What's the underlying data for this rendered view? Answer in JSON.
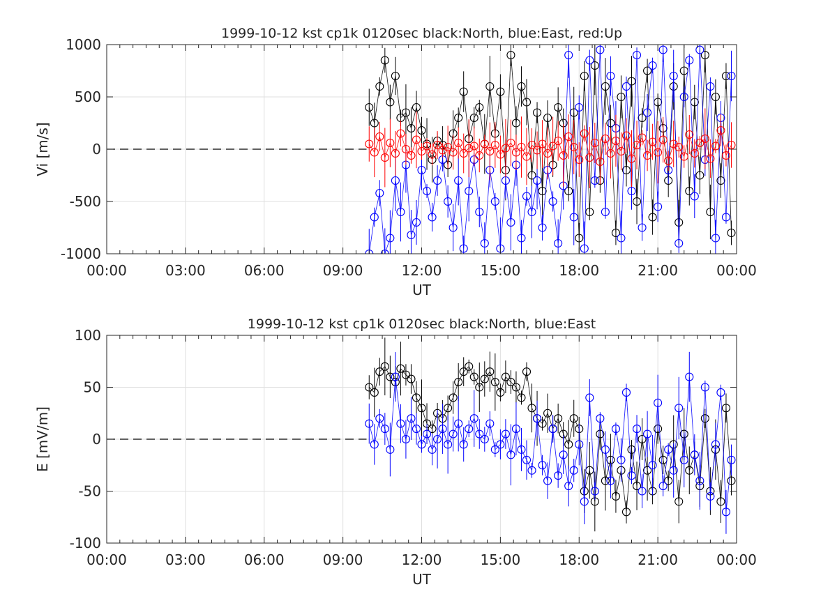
{
  "colors": {
    "north": "#000000",
    "east": "#0000ff",
    "up": "#ff0000",
    "grid": "#dfdfdf",
    "axis": "#262626"
  },
  "chart_data": [
    {
      "type": "scatter",
      "title": "1999-10-12 kst cp1k 0120sec black:North, blue:East, red:Up",
      "xlabel": "UT",
      "ylabel": "Vi [m/s]",
      "xlim": [
        0,
        24
      ],
      "ylim": [
        -1000,
        1000
      ],
      "grid": true,
      "x_ticks": [
        0,
        3,
        6,
        9,
        12,
        15,
        18,
        21,
        24
      ],
      "x_tick_labels": [
        "00:00",
        "03:00",
        "06:00",
        "09:00",
        "12:00",
        "15:00",
        "18:00",
        "21:00",
        "00:00"
      ],
      "y_ticks": [
        1000,
        500,
        0,
        -500,
        -1000
      ],
      "y_tick_labels": [
        "1000",
        "500",
        "0",
        "-500",
        "-1000"
      ],
      "zero_line": {
        "from_x": 0,
        "to_x": 9.9,
        "value": 0,
        "style": "dashed"
      },
      "series": [
        {
          "name": "North",
          "color": "#000000",
          "x": [
            10.0,
            10.2,
            10.4,
            10.6,
            10.8,
            11.0,
            11.2,
            11.4,
            11.6,
            11.8,
            12.0,
            12.2,
            12.4,
            12.6,
            12.8,
            13.0,
            13.2,
            13.4,
            13.6,
            13.8,
            14.0,
            14.2,
            14.4,
            14.6,
            14.8,
            15.0,
            15.2,
            15.4,
            15.6,
            15.8,
            16.0,
            16.2,
            16.4,
            16.6,
            16.8,
            17.0,
            17.2,
            17.4,
            17.6,
            17.8,
            18.0,
            18.2,
            18.4,
            18.6,
            18.8,
            19.0,
            19.2,
            19.4,
            19.6,
            19.8,
            20.0,
            20.2,
            20.4,
            20.6,
            20.8,
            21.0,
            21.2,
            21.4,
            21.6,
            21.8,
            22.0,
            22.2,
            22.4,
            22.6,
            22.8,
            23.0,
            23.2,
            23.4,
            23.6,
            23.8
          ],
          "y": [
            400,
            250,
            600,
            850,
            450,
            700,
            300,
            350,
            200,
            400,
            180,
            50,
            -100,
            80,
            40,
            -150,
            150,
            300,
            550,
            100,
            300,
            400,
            50,
            600,
            150,
            550,
            -200,
            900,
            250,
            600,
            450,
            -250,
            350,
            -400,
            300,
            -150,
            400,
            250,
            -400,
            350,
            -850,
            700,
            -600,
            800,
            -300,
            600,
            250,
            -800,
            500,
            -200,
            650,
            -500,
            300,
            750,
            -650,
            450,
            200,
            -300,
            600,
            -700,
            750,
            -400,
            450,
            -250,
            900,
            -600,
            500,
            -300,
            700,
            -800
          ]
        },
        {
          "name": "East",
          "color": "#0000ff",
          "x": [
            10.0,
            10.2,
            10.4,
            10.6,
            10.8,
            11.0,
            11.2,
            11.4,
            11.6,
            11.8,
            12.0,
            12.2,
            12.4,
            12.6,
            12.8,
            13.0,
            13.2,
            13.4,
            13.6,
            13.8,
            14.0,
            14.2,
            14.4,
            14.6,
            14.8,
            15.0,
            15.2,
            15.4,
            15.6,
            15.8,
            16.0,
            16.2,
            16.4,
            16.6,
            16.8,
            17.0,
            17.2,
            17.4,
            17.6,
            17.8,
            18.0,
            18.2,
            18.4,
            18.6,
            18.8,
            19.0,
            19.2,
            19.4,
            19.6,
            19.8,
            20.0,
            20.2,
            20.4,
            20.6,
            20.8,
            21.0,
            21.2,
            21.4,
            21.6,
            21.8,
            22.0,
            22.2,
            22.4,
            22.6,
            22.8,
            23.0,
            23.2,
            23.4,
            23.6,
            23.8
          ],
          "y": [
            -1000,
            -650,
            -420,
            -1000,
            -850,
            -300,
            -600,
            -150,
            -820,
            -700,
            -200,
            -400,
            -650,
            -300,
            -100,
            -500,
            -750,
            -300,
            -950,
            -400,
            -100,
            -600,
            -900,
            -200,
            -500,
            -950,
            -300,
            -700,
            -150,
            -850,
            -450,
            -600,
            -300,
            -750,
            -200,
            -500,
            -900,
            -350,
            900,
            -650,
            400,
            -950,
            850,
            -300,
            950,
            -600,
            700,
            200,
            -850,
            600,
            -400,
            900,
            -750,
            350,
            800,
            -550,
            950,
            -200,
            700,
            -900,
            500,
            850,
            -450,
            950,
            -100,
            600,
            -850,
            300,
            -650,
            700
          ]
        },
        {
          "name": "Up",
          "color": "#ff0000",
          "x": [
            10.0,
            10.2,
            10.4,
            10.6,
            10.8,
            11.0,
            11.2,
            11.4,
            11.6,
            11.8,
            12.0,
            12.2,
            12.4,
            12.6,
            12.8,
            13.0,
            13.2,
            13.4,
            13.6,
            13.8,
            14.0,
            14.2,
            14.4,
            14.6,
            14.8,
            15.0,
            15.2,
            15.4,
            15.6,
            15.8,
            16.0,
            16.2,
            16.4,
            16.6,
            16.8,
            17.0,
            17.2,
            17.4,
            17.6,
            17.8,
            18.0,
            18.2,
            18.4,
            18.6,
            18.8,
            19.0,
            19.2,
            19.4,
            19.6,
            19.8,
            20.0,
            20.2,
            20.4,
            20.6,
            20.8,
            21.0,
            21.2,
            21.4,
            21.6,
            21.8,
            22.0,
            22.2,
            22.4,
            22.6,
            22.8,
            23.0,
            23.2,
            23.4,
            23.6,
            23.8
          ],
          "y": [
            50,
            -30,
            120,
            -80,
            60,
            -40,
            150,
            0,
            -60,
            90,
            -20,
            30,
            -50,
            40,
            -10,
            20,
            -30,
            60,
            -40,
            10,
            30,
            -60,
            50,
            -20,
            40,
            -50,
            10,
            60,
            -30,
            20,
            -70,
            40,
            -10,
            50,
            -40,
            30,
            80,
            -60,
            120,
            20,
            -100,
            150,
            -80,
            60,
            -120,
            100,
            -40,
            80,
            -20,
            130,
            -90,
            40,
            110,
            -60,
            70,
            -30,
            90,
            -110,
            50,
            20,
            -70,
            140,
            -40,
            60,
            100,
            -90,
            30,
            180,
            -60,
            40
          ]
        }
      ]
    },
    {
      "type": "scatter",
      "title": "1999-10-12 kst cp1k 0120sec black:North, blue:East",
      "xlabel": "UT",
      "ylabel": "E [mV/m]",
      "xlim": [
        0,
        24
      ],
      "ylim": [
        -100,
        100
      ],
      "grid": true,
      "x_ticks": [
        0,
        3,
        6,
        9,
        12,
        15,
        18,
        21,
        24
      ],
      "x_tick_labels": [
        "00:00",
        "03:00",
        "06:00",
        "09:00",
        "12:00",
        "15:00",
        "18:00",
        "21:00",
        "00:00"
      ],
      "y_ticks": [
        100,
        50,
        0,
        -50,
        -100
      ],
      "y_tick_labels": [
        "100",
        "50",
        "0",
        "-50",
        "-100"
      ],
      "zero_line": {
        "from_x": 0,
        "to_x": 9.9,
        "value": 0,
        "style": "dashed"
      },
      "series": [
        {
          "name": "North",
          "color": "#000000",
          "x": [
            10.0,
            10.2,
            10.4,
            10.6,
            10.8,
            11.0,
            11.2,
            11.4,
            11.6,
            11.8,
            12.0,
            12.2,
            12.4,
            12.6,
            12.8,
            13.0,
            13.2,
            13.4,
            13.6,
            13.8,
            14.0,
            14.2,
            14.4,
            14.6,
            14.8,
            15.0,
            15.2,
            15.4,
            15.6,
            15.8,
            16.0,
            16.2,
            16.4,
            16.6,
            16.8,
            17.0,
            17.2,
            17.4,
            17.6,
            17.8,
            18.0,
            18.2,
            18.4,
            18.6,
            18.8,
            19.0,
            19.2,
            19.4,
            19.6,
            19.8,
            20.0,
            20.2,
            20.4,
            20.6,
            20.8,
            21.0,
            21.2,
            21.4,
            21.6,
            21.8,
            22.0,
            22.2,
            22.4,
            22.6,
            22.8,
            23.0,
            23.2,
            23.4,
            23.6,
            23.8
          ],
          "y": [
            50,
            45,
            65,
            70,
            60,
            55,
            68,
            62,
            58,
            40,
            30,
            15,
            10,
            25,
            20,
            30,
            40,
            55,
            65,
            70,
            60,
            50,
            58,
            65,
            55,
            45,
            60,
            55,
            50,
            40,
            65,
            30,
            20,
            15,
            25,
            10,
            20,
            5,
            -5,
            20,
            10,
            -50,
            -30,
            -60,
            5,
            -40,
            -20,
            -55,
            -30,
            -70,
            -10,
            -45,
            0,
            -30,
            -50,
            10,
            -20,
            -40,
            -5,
            -60,
            5,
            -30,
            -15,
            -45,
            20,
            -50,
            -10,
            -60,
            30,
            -40
          ]
        },
        {
          "name": "East",
          "color": "#0000ff",
          "x": [
            10.0,
            10.2,
            10.4,
            10.6,
            10.8,
            11.0,
            11.2,
            11.4,
            11.6,
            11.8,
            12.0,
            12.2,
            12.4,
            12.6,
            12.8,
            13.0,
            13.2,
            13.4,
            13.6,
            13.8,
            14.0,
            14.2,
            14.4,
            14.6,
            14.8,
            15.0,
            15.2,
            15.4,
            15.6,
            15.8,
            16.0,
            16.2,
            16.4,
            16.6,
            16.8,
            17.0,
            17.2,
            17.4,
            17.6,
            17.8,
            18.0,
            18.2,
            18.4,
            18.6,
            18.8,
            19.0,
            19.2,
            19.4,
            19.6,
            19.8,
            20.0,
            20.2,
            20.4,
            20.6,
            20.8,
            21.0,
            21.2,
            21.4,
            21.6,
            21.8,
            22.0,
            22.2,
            22.4,
            22.6,
            22.8,
            23.0,
            23.2,
            23.4,
            23.6,
            23.8
          ],
          "y": [
            15,
            -5,
            20,
            10,
            -10,
            60,
            15,
            0,
            20,
            10,
            -5,
            5,
            -10,
            0,
            10,
            -5,
            5,
            15,
            -5,
            10,
            20,
            5,
            0,
            15,
            -10,
            -5,
            5,
            -15,
            10,
            -10,
            -20,
            -30,
            20,
            -25,
            -40,
            10,
            -35,
            -15,
            -45,
            -30,
            -5,
            -60,
            40,
            -50,
            20,
            -10,
            -40,
            10,
            -20,
            45,
            -35,
            10,
            -50,
            5,
            -25,
            35,
            -45,
            -10,
            -30,
            30,
            -20,
            60,
            -15,
            -40,
            50,
            -55,
            -5,
            45,
            -70,
            -20
          ]
        }
      ]
    }
  ]
}
